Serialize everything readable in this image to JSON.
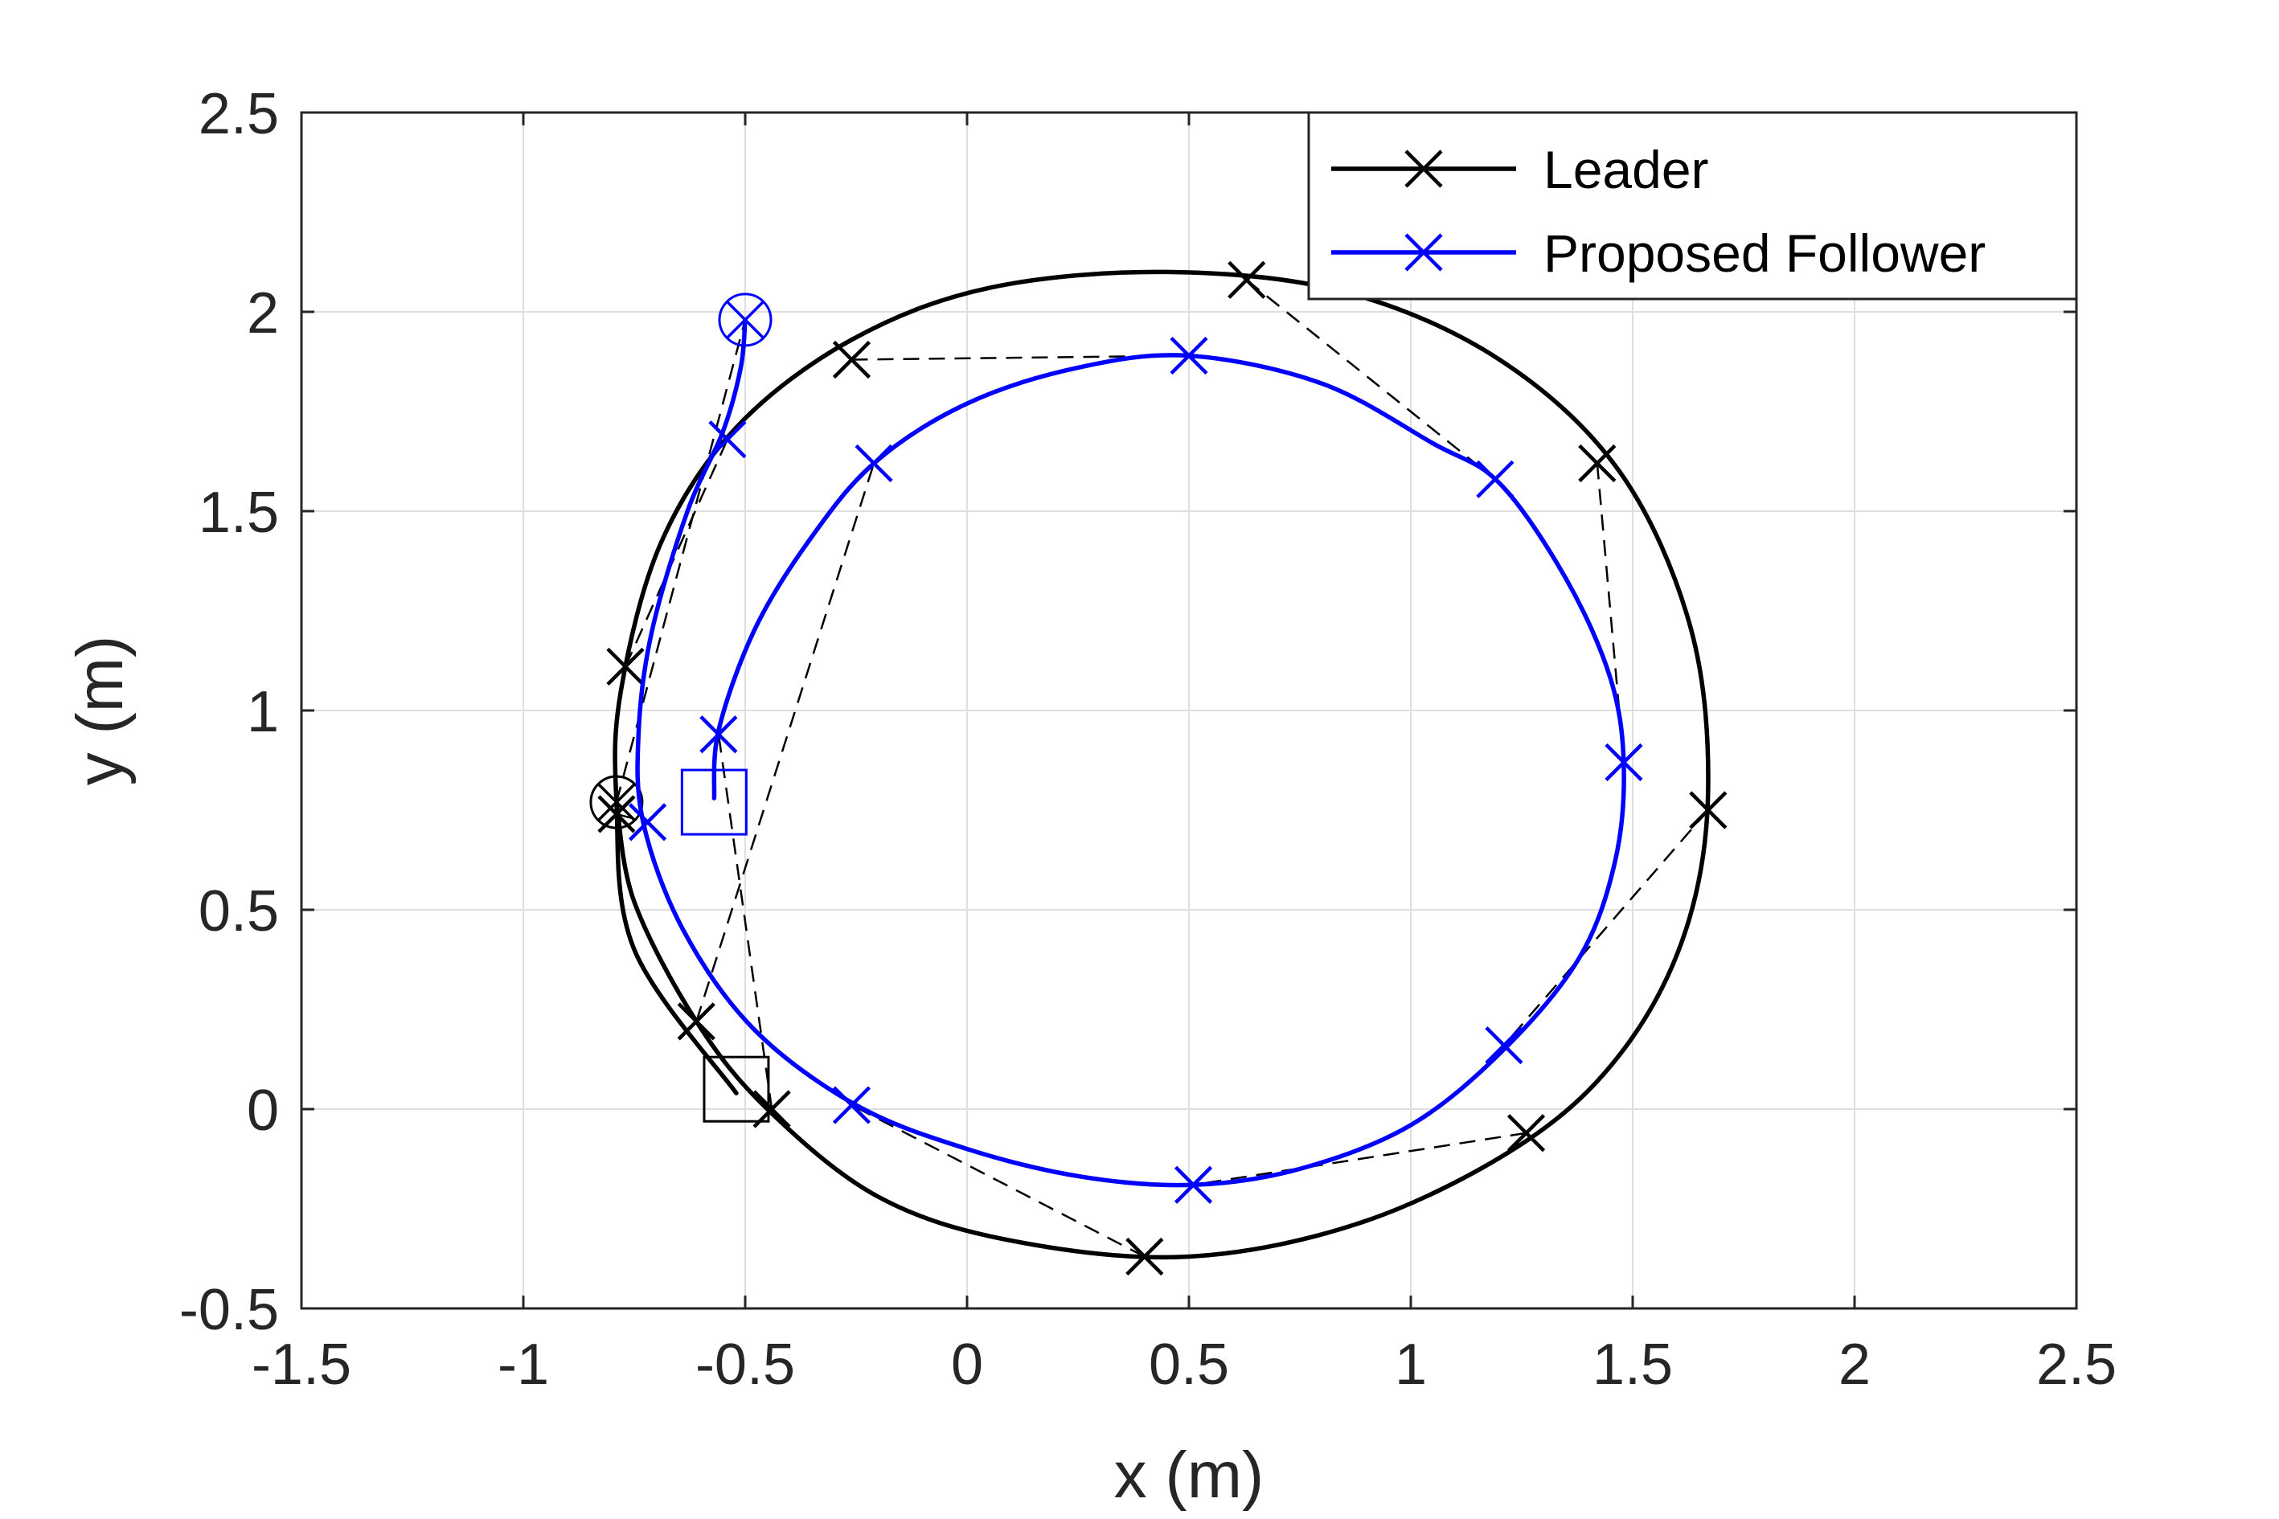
{
  "chart_data": {
    "type": "line",
    "xlabel": "x (m)",
    "ylabel": "y (m)",
    "xlim": [
      -1.5,
      2.5
    ],
    "ylim": [
      -0.5,
      2.5
    ],
    "xticks": [
      -1.5,
      -1,
      -0.5,
      0,
      0.5,
      1,
      1.5,
      2,
      2.5
    ],
    "yticks": [
      -0.5,
      0,
      0.5,
      1,
      1.5,
      2,
      2.5
    ],
    "xtick_labels": [
      "-1.5",
      "-1",
      "-0.5",
      "0",
      "0.5",
      "1",
      "1.5",
      "2",
      "2.5"
    ],
    "ytick_labels": [
      "-0.5",
      "0",
      "0.5",
      "1",
      "1.5",
      "2",
      "2.5"
    ],
    "grid": true,
    "legend_position": "top-right",
    "series": [
      {
        "name": "Leader",
        "color": "#000000",
        "marker": "x",
        "trajectory_points": [
          [
            -0.52,
            0.04
          ],
          [
            -0.75,
            0.4
          ],
          [
            -0.79,
            0.77
          ],
          [
            -0.78,
            1.05
          ],
          [
            -0.69,
            1.42
          ],
          [
            -0.52,
            1.71
          ],
          [
            -0.26,
            1.93
          ],
          [
            0.05,
            2.06
          ],
          [
            0.45,
            2.1
          ],
          [
            0.85,
            2.05
          ],
          [
            1.2,
            1.88
          ],
          [
            1.47,
            1.6
          ],
          [
            1.63,
            1.21
          ],
          [
            1.67,
            0.8
          ],
          [
            1.62,
            0.45
          ],
          [
            1.48,
            0.15
          ],
          [
            1.26,
            -0.08
          ],
          [
            0.9,
            -0.28
          ],
          [
            0.5,
            -0.37
          ],
          [
            0.1,
            -0.33
          ],
          [
            -0.2,
            -0.22
          ],
          [
            -0.45,
            0.0
          ],
          [
            -0.61,
            0.22
          ],
          [
            -0.75,
            0.52
          ],
          [
            -0.79,
            0.77
          ]
        ],
        "markers": [
          [
            -0.79,
            0.74
          ],
          [
            -0.77,
            1.11
          ],
          [
            -0.26,
            1.88
          ],
          [
            0.63,
            2.08
          ],
          [
            1.42,
            1.62
          ],
          [
            1.67,
            0.75
          ],
          [
            1.26,
            -0.06
          ],
          [
            0.4,
            -0.37
          ],
          [
            -0.44,
            0.0
          ],
          [
            -0.61,
            0.22
          ]
        ],
        "start_square": [
          -0.52,
          0.05
        ],
        "end_circle": [
          -0.79,
          0.77
        ]
      },
      {
        "name": "Proposed Follower",
        "color": "#0000ff",
        "marker": "x",
        "trajectory_points": [
          [
            -0.57,
            0.78
          ],
          [
            -0.56,
            0.95
          ],
          [
            -0.48,
            1.2
          ],
          [
            -0.36,
            1.42
          ],
          [
            -0.21,
            1.62
          ],
          [
            0.0,
            1.77
          ],
          [
            0.25,
            1.86
          ],
          [
            0.5,
            1.89
          ],
          [
            0.8,
            1.82
          ],
          [
            1.05,
            1.67
          ],
          [
            1.2,
            1.57
          ],
          [
            1.35,
            1.33
          ],
          [
            1.45,
            1.08
          ],
          [
            1.48,
            0.86
          ],
          [
            1.46,
            0.62
          ],
          [
            1.38,
            0.38
          ],
          [
            1.21,
            0.15
          ],
          [
            1.0,
            -0.04
          ],
          [
            0.75,
            -0.15
          ],
          [
            0.51,
            -0.19
          ],
          [
            0.26,
            -0.17
          ],
          [
            0.0,
            -0.1
          ],
          [
            -0.25,
            0.01
          ],
          [
            -0.48,
            0.2
          ],
          [
            -0.64,
            0.45
          ],
          [
            -0.73,
            0.72
          ],
          [
            -0.74,
            0.95
          ],
          [
            -0.71,
            1.2
          ],
          [
            -0.63,
            1.5
          ],
          [
            -0.55,
            1.7
          ],
          [
            -0.51,
            1.86
          ],
          [
            -0.5,
            1.98
          ]
        ],
        "markers": [
          [
            -0.56,
            0.94
          ],
          [
            -0.21,
            1.62
          ],
          [
            0.5,
            1.89
          ],
          [
            1.19,
            1.58
          ],
          [
            1.48,
            0.87
          ],
          [
            1.21,
            0.16
          ],
          [
            0.51,
            -0.19
          ],
          [
            -0.26,
            0.01
          ],
          [
            -0.72,
            0.72
          ],
          [
            -0.54,
            1.68
          ]
        ],
        "start_square": [
          -0.57,
          0.77
        ],
        "end_circle": [
          -0.5,
          1.98
        ]
      }
    ],
    "pairing_lines": [
      [
        [
          -0.79,
          0.74
        ],
        [
          -0.72,
          0.72
        ]
      ],
      [
        [
          -0.77,
          1.11
        ],
        [
          -0.54,
          1.68
        ]
      ],
      [
        [
          -0.26,
          1.88
        ],
        [
          0.5,
          1.89
        ]
      ],
      [
        [
          0.63,
          2.08
        ],
        [
          1.19,
          1.58
        ]
      ],
      [
        [
          1.42,
          1.62
        ],
        [
          1.48,
          0.87
        ]
      ],
      [
        [
          1.67,
          0.75
        ],
        [
          1.21,
          0.16
        ]
      ],
      [
        [
          1.26,
          -0.06
        ],
        [
          0.51,
          -0.19
        ]
      ],
      [
        [
          0.4,
          -0.37
        ],
        [
          -0.26,
          0.01
        ]
      ],
      [
        [
          -0.44,
          0.0
        ],
        [
          -0.56,
          0.94
        ]
      ],
      [
        [
          -0.61,
          0.22
        ],
        [
          -0.21,
          1.62
        ]
      ],
      [
        [
          -0.79,
          0.77
        ],
        [
          -0.5,
          1.98
        ]
      ]
    ]
  },
  "legend": {
    "entries": [
      {
        "label": "Leader",
        "color": "#000000"
      },
      {
        "label": "Proposed Follower",
        "color": "#0000ff"
      }
    ]
  }
}
